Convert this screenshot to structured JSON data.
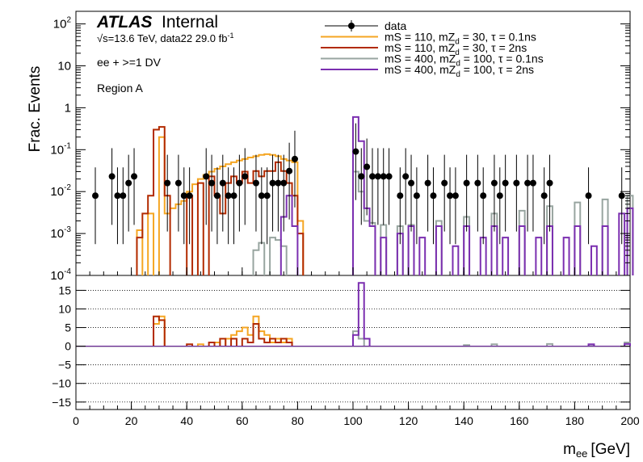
{
  "header": {
    "experiment": "ATLAS",
    "status": "Internal",
    "energy_line": "√s=13.6 TeV, data22 29.0 fb",
    "energy_line_sup": "-1",
    "selection": "ee + >=1 DV",
    "region": "Region A"
  },
  "legend": {
    "entries": [
      {
        "label": "data",
        "color": "#000000",
        "style": "marker"
      },
      {
        "label": "mS = 110, mZ_d = 30, τ = 0.1ns",
        "color": "#f5a623",
        "style": "line"
      },
      {
        "label": "mS = 110, mZ_d = 30, τ = 2ns",
        "color": "#b22a00",
        "style": "line"
      },
      {
        "label": "mS = 400, mZ_d = 100, τ = 0.1ns",
        "color": "#98a5a0",
        "style": "line"
      },
      {
        "label": "mS = 400, mZ_d = 100, τ = 2ns",
        "color": "#7b2fb0",
        "style": "line"
      }
    ]
  },
  "chart_data": {
    "type": "line",
    "xlabel": "m",
    "xlabel_sub": "ee",
    "xlabel_unit": "[GeV]",
    "ylabel": "Frac. Events",
    "xlim": [
      0,
      200
    ],
    "x_ticks": [
      "0",
      "20",
      "40",
      "60",
      "80",
      "100",
      "120",
      "140",
      "160",
      "180",
      "200"
    ],
    "y_scale": "log",
    "ylim": [
      0.0001,
      200
    ],
    "y_ticks": [
      "10^-4",
      "10^-3",
      "10^-2",
      "10^-1",
      "1",
      "10",
      "10^2"
    ],
    "ratio_ylim": [
      -17,
      19
    ],
    "ratio_ticks": [
      "−15",
      "−10",
      "−5",
      "0",
      "5",
      "10",
      "15"
    ],
    "grid": "dotted horizontal lines in ratio panel",
    "data_points": [
      {
        "x": 7,
        "y": 0.008
      },
      {
        "x": 13,
        "y": 0.023
      },
      {
        "x": 15,
        "y": 0.008
      },
      {
        "x": 17,
        "y": 0.008
      },
      {
        "x": 19,
        "y": 0.016
      },
      {
        "x": 21,
        "y": 0.023
      },
      {
        "x": 33,
        "y": 0.016
      },
      {
        "x": 37,
        "y": 0.016
      },
      {
        "x": 39,
        "y": 0.008
      },
      {
        "x": 41,
        "y": 0.008
      },
      {
        "x": 47,
        "y": 0.023
      },
      {
        "x": 49,
        "y": 0.016
      },
      {
        "x": 51,
        "y": 0.008
      },
      {
        "x": 53,
        "y": 0.016
      },
      {
        "x": 55,
        "y": 0.008
      },
      {
        "x": 57,
        "y": 0.008
      },
      {
        "x": 59,
        "y": 0.016
      },
      {
        "x": 61,
        "y": 0.023
      },
      {
        "x": 65,
        "y": 0.016
      },
      {
        "x": 67,
        "y": 0.008
      },
      {
        "x": 69,
        "y": 0.008
      },
      {
        "x": 71,
        "y": 0.016
      },
      {
        "x": 73,
        "y": 0.016
      },
      {
        "x": 75,
        "y": 0.016
      },
      {
        "x": 77,
        "y": 0.031
      },
      {
        "x": 79,
        "y": 0.06
      },
      {
        "x": 101,
        "y": 0.09
      },
      {
        "x": 103,
        "y": 0.023
      },
      {
        "x": 105,
        "y": 0.039
      },
      {
        "x": 107,
        "y": 0.023
      },
      {
        "x": 109,
        "y": 0.023
      },
      {
        "x": 111,
        "y": 0.023
      },
      {
        "x": 113,
        "y": 0.023
      },
      {
        "x": 117,
        "y": 0.008
      },
      {
        "x": 119,
        "y": 0.023
      },
      {
        "x": 121,
        "y": 0.016
      },
      {
        "x": 123,
        "y": 0.008
      },
      {
        "x": 127,
        "y": 0.016
      },
      {
        "x": 129,
        "y": 0.008
      },
      {
        "x": 133,
        "y": 0.016
      },
      {
        "x": 135,
        "y": 0.008
      },
      {
        "x": 137,
        "y": 0.008
      },
      {
        "x": 141,
        "y": 0.016
      },
      {
        "x": 145,
        "y": 0.016
      },
      {
        "x": 147,
        "y": 0.008
      },
      {
        "x": 151,
        "y": 0.016
      },
      {
        "x": 153,
        "y": 0.008
      },
      {
        "x": 155,
        "y": 0.016
      },
      {
        "x": 159,
        "y": 0.016
      },
      {
        "x": 163,
        "y": 0.016
      },
      {
        "x": 165,
        "y": 0.016
      },
      {
        "x": 169,
        "y": 0.008
      },
      {
        "x": 171,
        "y": 0.016
      },
      {
        "x": 185,
        "y": 0.008
      },
      {
        "x": 197,
        "y": 0.008
      }
    ],
    "series": [
      {
        "key": "s110_01",
        "color": "#f5a623",
        "values": [
          [
            22,
            0.0012
          ],
          [
            26,
            0.003
          ],
          [
            30,
            0.2
          ],
          [
            32,
            0.003
          ],
          [
            34,
            0.004
          ],
          [
            36,
            0.005
          ],
          [
            38,
            0.006
          ],
          [
            40,
            0.01
          ],
          [
            42,
            0.015
          ],
          [
            44,
            0.02
          ],
          [
            46,
            0.025
          ],
          [
            48,
            0.03
          ],
          [
            50,
            0.035
          ],
          [
            52,
            0.04
          ],
          [
            54,
            0.045
          ],
          [
            56,
            0.05
          ],
          [
            58,
            0.055
          ],
          [
            60,
            0.06
          ],
          [
            62,
            0.065
          ],
          [
            64,
            0.07
          ],
          [
            66,
            0.075
          ],
          [
            68,
            0.078
          ],
          [
            70,
            0.075
          ],
          [
            72,
            0.07
          ],
          [
            74,
            0.06
          ],
          [
            76,
            0.055
          ],
          [
            78,
            0.05
          ],
          [
            80,
            0.002
          ]
        ]
      },
      {
        "key": "s110_2",
        "color": "#b22a00",
        "values": [
          [
            22,
            0.0008
          ],
          [
            24,
            0.003
          ],
          [
            26,
            0.008
          ],
          [
            28,
            0.3
          ],
          [
            30,
            0.35
          ],
          [
            32,
            0.008
          ],
          [
            40,
            0.008
          ],
          [
            44,
            0.016
          ],
          [
            48,
            0.023
          ],
          [
            50,
            0.008
          ],
          [
            52,
            0.003
          ],
          [
            54,
            0.016
          ],
          [
            56,
            0.023
          ],
          [
            58,
            0.016
          ],
          [
            60,
            0.03
          ],
          [
            62,
            0.016
          ],
          [
            64,
            0.031
          ],
          [
            66,
            0.023
          ],
          [
            68,
            0.031
          ],
          [
            70,
            0.031
          ],
          [
            72,
            0.05
          ],
          [
            74,
            0.031
          ],
          [
            76,
            0.016
          ],
          [
            78,
            0.008
          ],
          [
            80,
            0.001
          ]
        ]
      },
      {
        "key": "s400_01",
        "color": "#98a5a0",
        "values": [
          [
            64,
            0.0004
          ],
          [
            66,
            0.0006
          ],
          [
            70,
            0.0008
          ],
          [
            72,
            0.0007
          ],
          [
            74,
            0.0005
          ],
          [
            100,
            0.03
          ],
          [
            102,
            0.01
          ],
          [
            104,
            0.002
          ],
          [
            106,
            0.0018
          ],
          [
            110,
            0.0016
          ],
          [
            116,
            0.0015
          ],
          [
            120,
            0.0016
          ],
          [
            130,
            0.002
          ],
          [
            140,
            0.0025
          ],
          [
            150,
            0.003
          ],
          [
            160,
            0.0035
          ],
          [
            170,
            0.0045
          ],
          [
            180,
            0.0055
          ],
          [
            190,
            0.0065
          ],
          [
            199,
            0.008
          ]
        ]
      },
      {
        "key": "s400_2",
        "color": "#7b2fb0",
        "values": [
          [
            74,
            0.0025
          ],
          [
            76,
            0.008
          ],
          [
            78,
            0.0015
          ],
          [
            100,
            0.6
          ],
          [
            102,
            0.16
          ],
          [
            104,
            0.004
          ],
          [
            106,
            0.0015
          ],
          [
            110,
            0.0008
          ],
          [
            116,
            0.001
          ],
          [
            120,
            0.0015
          ],
          [
            124,
            0.0008
          ],
          [
            130,
            0.0015
          ],
          [
            136,
            0.0005
          ],
          [
            140,
            0.0015
          ],
          [
            146,
            0.0008
          ],
          [
            150,
            0.0015
          ],
          [
            154,
            0.0008
          ],
          [
            160,
            0.0015
          ],
          [
            166,
            0.0008
          ],
          [
            170,
            0.0015
          ],
          [
            176,
            0.0008
          ],
          [
            180,
            0.0015
          ],
          [
            186,
            0.0005
          ],
          [
            190,
            0.0015
          ],
          [
            196,
            0.003
          ],
          [
            199,
            0.004
          ]
        ]
      }
    ],
    "ratio_series": [
      {
        "key": "s110_01",
        "color": "#f5a623",
        "values": [
          [
            28,
            6
          ],
          [
            30,
            8
          ],
          [
            44,
            0.5
          ],
          [
            50,
            1
          ],
          [
            54,
            2
          ],
          [
            56,
            3
          ],
          [
            58,
            4
          ],
          [
            60,
            5
          ],
          [
            62,
            3
          ],
          [
            64,
            8
          ],
          [
            66,
            4
          ],
          [
            68,
            3
          ],
          [
            70,
            1
          ],
          [
            72,
            2
          ],
          [
            74,
            1
          ],
          [
            76,
            2
          ]
        ]
      },
      {
        "key": "s110_2",
        "color": "#b22a00",
        "values": [
          [
            28,
            8
          ],
          [
            30,
            7
          ],
          [
            40,
            0.5
          ],
          [
            48,
            1
          ],
          [
            52,
            2
          ],
          [
            56,
            2
          ],
          [
            60,
            2
          ],
          [
            62,
            1
          ],
          [
            64,
            6
          ],
          [
            66,
            2
          ],
          [
            68,
            1
          ],
          [
            70,
            2
          ],
          [
            72,
            1
          ],
          [
            74,
            2
          ],
          [
            76,
            1
          ]
        ]
      },
      {
        "key": "s400_01",
        "color": "#98a5a0",
        "values": [
          [
            100,
            4
          ],
          [
            102,
            2
          ],
          [
            140,
            0.3
          ],
          [
            150,
            0.5
          ],
          [
            170,
            0.6
          ],
          [
            185,
            0.4
          ],
          [
            198,
            1
          ]
        ]
      },
      {
        "key": "s400_2",
        "color": "#7b2fb0",
        "values": [
          [
            100,
            3
          ],
          [
            102,
            17
          ],
          [
            104,
            2
          ],
          [
            185,
            0.5
          ],
          [
            198,
            0.6
          ]
        ]
      }
    ]
  }
}
